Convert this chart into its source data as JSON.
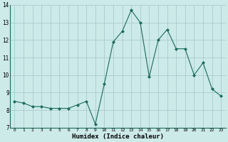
{
  "x": [
    0,
    1,
    2,
    3,
    4,
    5,
    6,
    7,
    8,
    9,
    10,
    11,
    12,
    13,
    14,
    15,
    16,
    17,
    18,
    19,
    20,
    21,
    22,
    23
  ],
  "y": [
    8.5,
    8.4,
    8.2,
    8.2,
    8.1,
    8.1,
    8.1,
    8.3,
    8.5,
    7.2,
    9.5,
    11.9,
    12.5,
    13.7,
    13.0,
    9.9,
    12.0,
    12.6,
    11.5,
    11.5,
    10.0,
    10.7,
    9.2,
    8.8
  ],
  "xlabel": "Humidex (Indice chaleur)",
  "ylim": [
    7,
    14
  ],
  "xlim": [
    -0.5,
    23.5
  ],
  "yticks": [
    7,
    8,
    9,
    10,
    11,
    12,
    13,
    14
  ],
  "xticks": [
    0,
    1,
    2,
    3,
    4,
    5,
    6,
    7,
    8,
    9,
    10,
    11,
    12,
    13,
    14,
    15,
    16,
    17,
    18,
    19,
    20,
    21,
    22,
    23
  ],
  "line_color": "#1a6b5a",
  "marker_color": "#1a6b5a",
  "bg_color": "#cceae8",
  "grid_color": "#aacccc",
  "spine_color": "#1a6b5a"
}
